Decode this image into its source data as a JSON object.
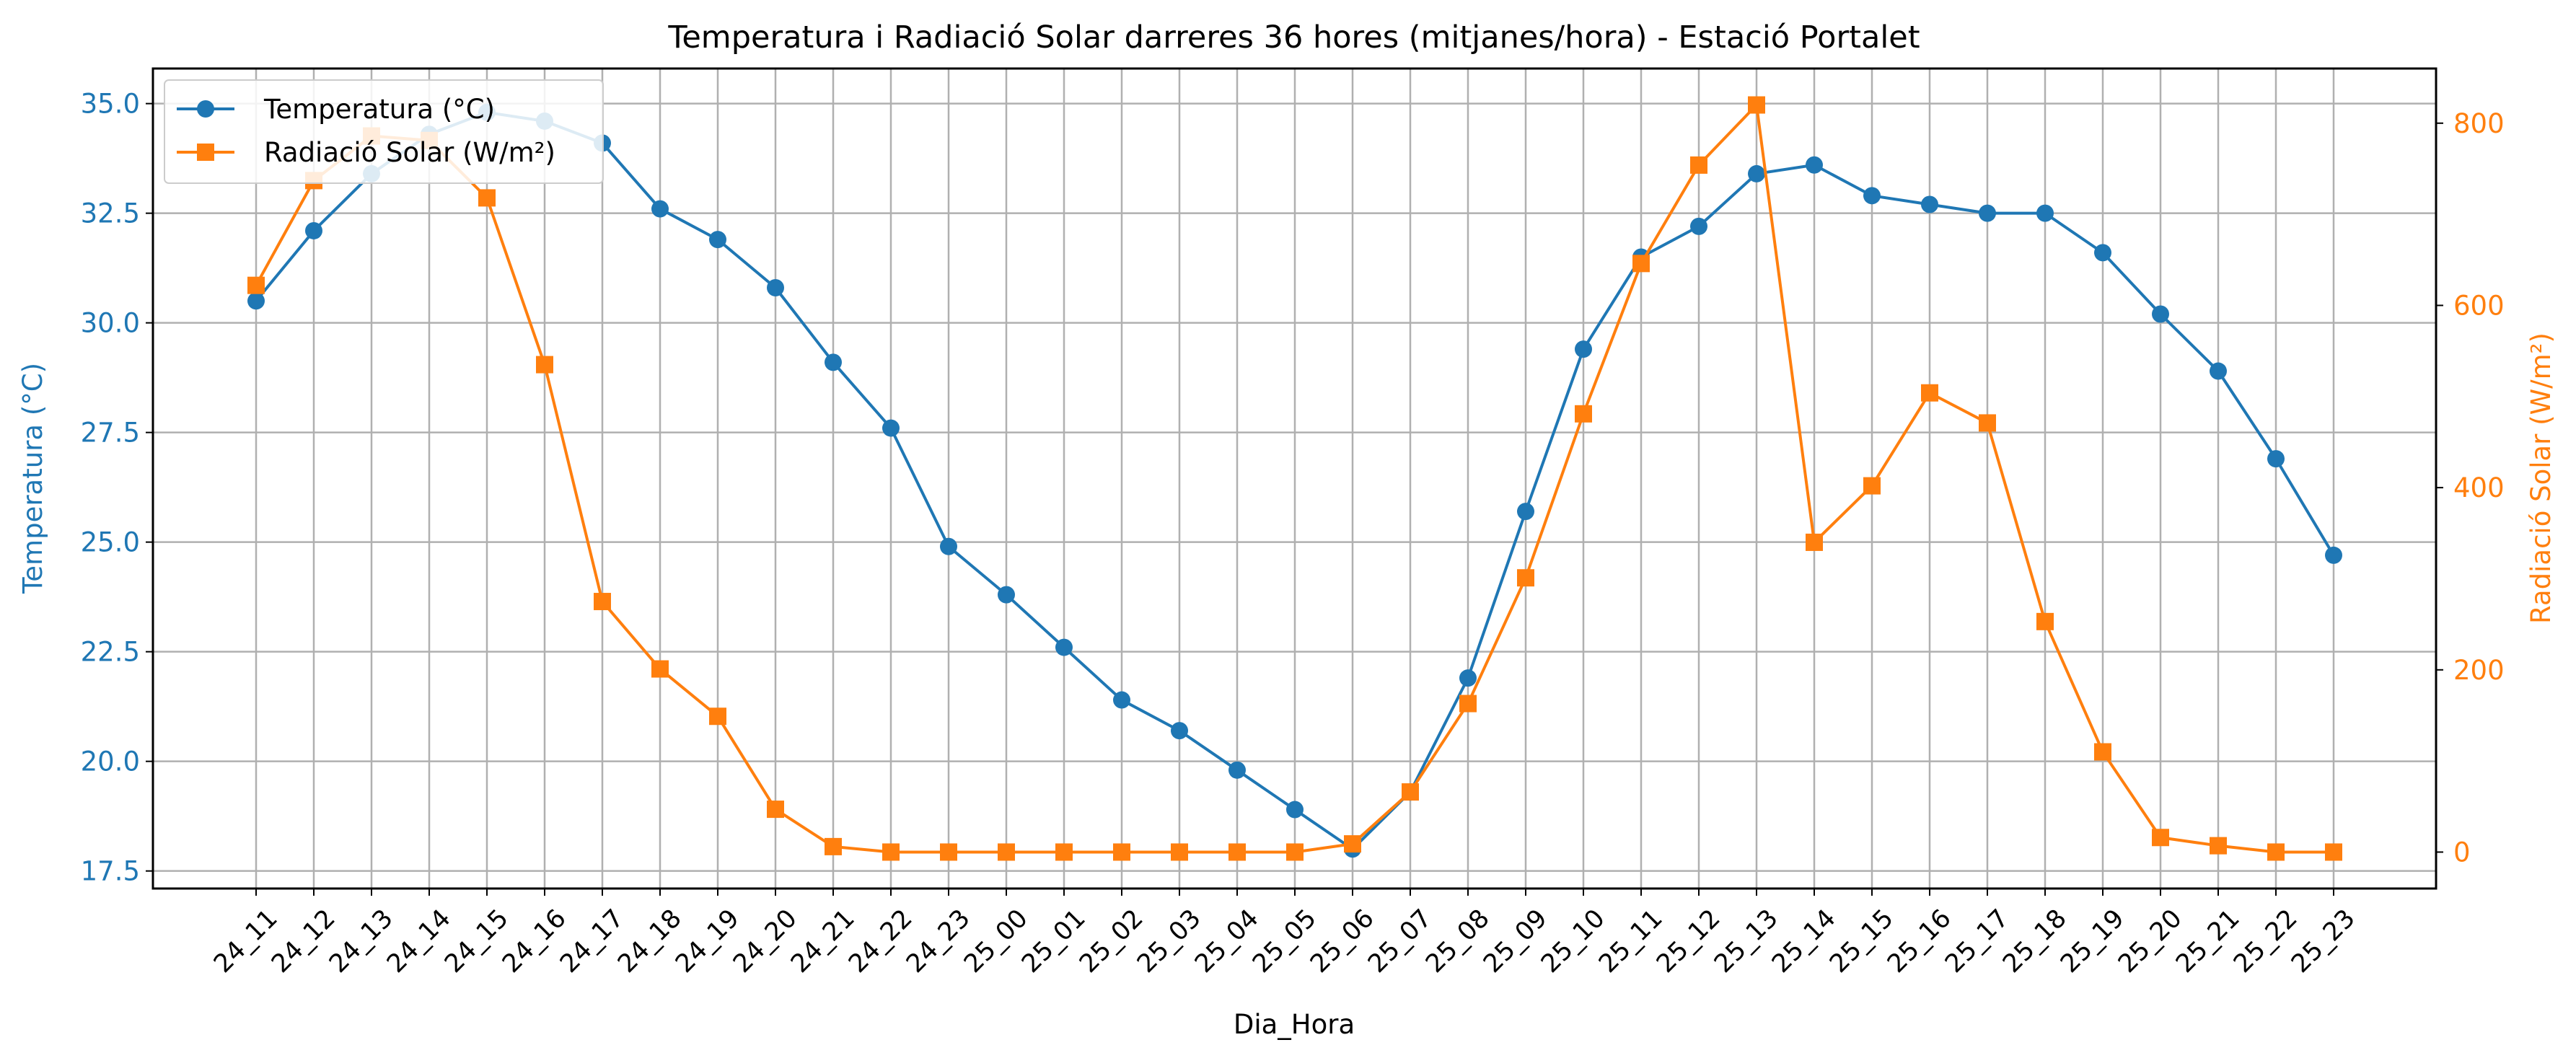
{
  "chart_data": {
    "type": "line",
    "title": "Temperatura i Radiació Solar darreres 36 hores (mitjanes/hora) - Estació Portalet",
    "xlabel": "Dia_Hora",
    "ylabel_left": "Temperatura (°C)",
    "ylabel_right": "Radiació Solar (W/m²)",
    "categories": [
      "24_11",
      "24_12",
      "24_13",
      "24_14",
      "24_15",
      "24_16",
      "24_17",
      "24_18",
      "24_19",
      "24_20",
      "24_21",
      "24_22",
      "24_23",
      "25_00",
      "25_01",
      "25_02",
      "25_03",
      "25_04",
      "25_05",
      "25_06",
      "25_07",
      "25_08",
      "25_09",
      "25_10",
      "25_11",
      "25_12",
      "25_13",
      "25_14",
      "25_15",
      "25_16",
      "25_17",
      "25_18",
      "25_19",
      "25_20",
      "25_21",
      "25_22",
      "25_23"
    ],
    "ylim_left": [
      17.1,
      35.8
    ],
    "ylim_right": [
      -40,
      860
    ],
    "yticks_left": [
      "17.5",
      "20.0",
      "22.5",
      "25.0",
      "27.5",
      "30.0",
      "32.5",
      "35.0"
    ],
    "yticks_right": [
      "0",
      "200",
      "400",
      "600",
      "800"
    ],
    "grid": true,
    "legend_position": "upper-left",
    "series": [
      {
        "name": "Temperatura (°C)",
        "axis": "left",
        "color": "#1f77b4",
        "marker": "circle",
        "values": [
          30.5,
          32.1,
          33.4,
          34.3,
          34.8,
          34.6,
          34.1,
          32.6,
          31.9,
          30.8,
          29.1,
          27.6,
          24.9,
          23.8,
          22.6,
          21.4,
          20.7,
          19.8,
          18.9,
          18.0,
          19.3,
          21.9,
          25.7,
          29.4,
          31.5,
          32.2,
          33.4,
          33.6,
          32.9,
          32.7,
          32.5,
          32.5,
          31.6,
          30.2,
          28.9,
          26.9,
          24.7
        ]
      },
      {
        "name": "Radiació Solar (W/m²)",
        "axis": "right",
        "color": "#ff7f0e",
        "marker": "square",
        "values": [
          622,
          737,
          786,
          781,
          718,
          535,
          275,
          201,
          149,
          47,
          6,
          0,
          0,
          0,
          0,
          0,
          0,
          0,
          0,
          9,
          66,
          163,
          301,
          481,
          646,
          754,
          820,
          340,
          402,
          504,
          471,
          253,
          110,
          16,
          7,
          0,
          0
        ]
      }
    ]
  }
}
